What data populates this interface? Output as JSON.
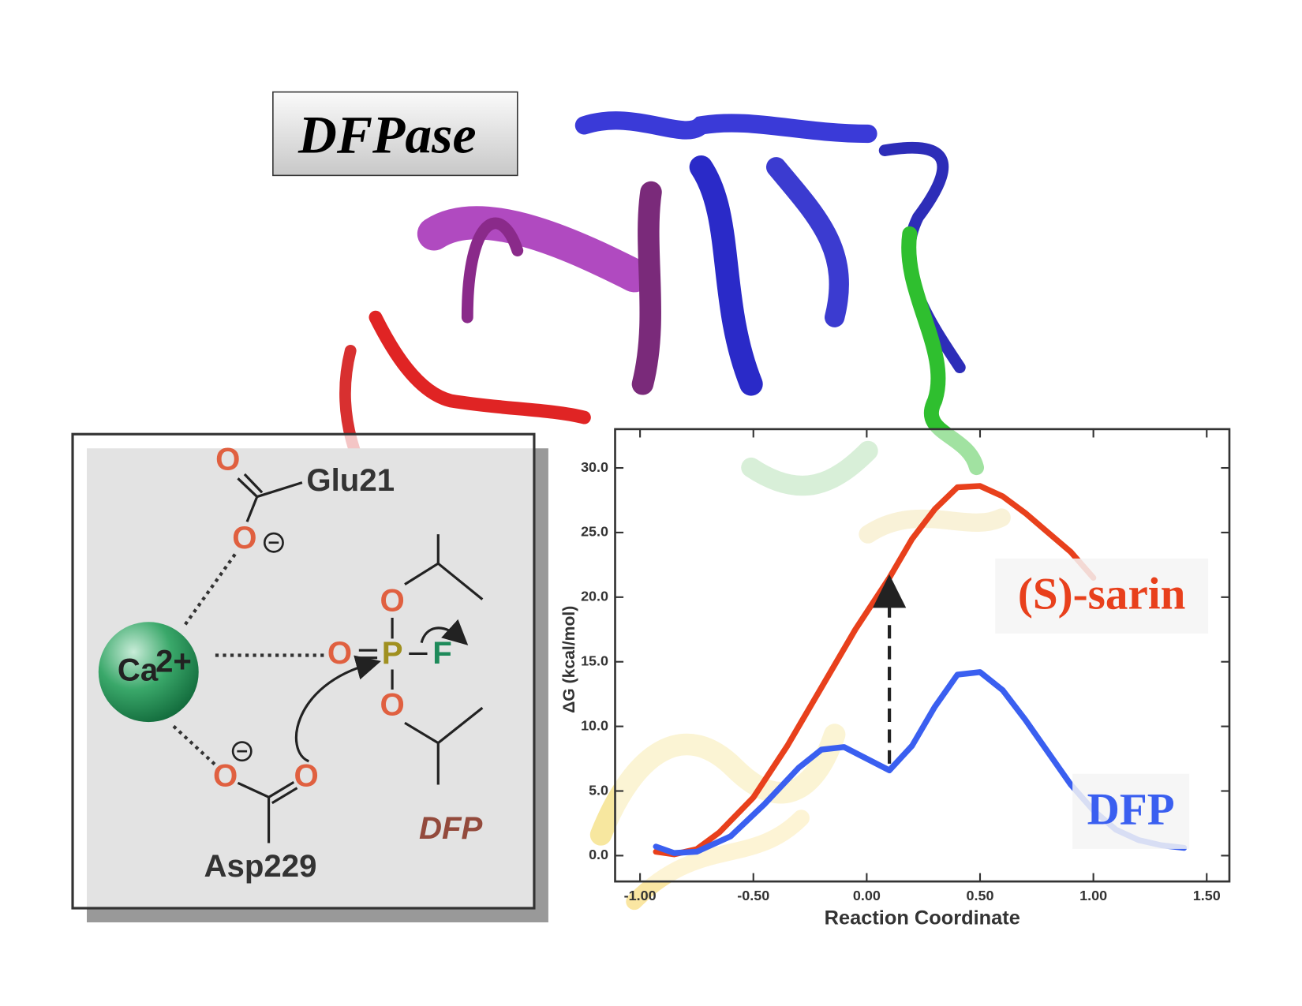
{
  "diagram": {
    "label_box": "DFPase",
    "glu": "Glu21",
    "asp": "Asp229",
    "metal": "Ca",
    "metal_charge": "2+",
    "oxygen": "O",
    "phosphorus": "P",
    "fluorine": "F",
    "substrate": "DFP"
  },
  "chart_data": {
    "type": "line",
    "xlabel": "Reaction Coordinate",
    "ylabel": "ΔG (kcal/mol)",
    "xlim": [
      -1.11,
      1.6
    ],
    "ylim": [
      -2,
      33
    ],
    "xticks": [
      {
        "value": -1,
        "label": "-1.00"
      },
      {
        "value": -0.5,
        "label": "-0.50"
      },
      {
        "value": 0,
        "label": "0.00"
      },
      {
        "value": 0.5,
        "label": "0.50"
      },
      {
        "value": 1,
        "label": "1.00"
      },
      {
        "value": 1.5,
        "label": "1.50"
      }
    ],
    "yticks": [
      {
        "value": 0,
        "label": "0.0"
      },
      {
        "value": 5,
        "label": "5.0"
      },
      {
        "value": 10,
        "label": "10.0"
      },
      {
        "value": 15,
        "label": "15.0"
      },
      {
        "value": 20,
        "label": "20.0"
      },
      {
        "value": 25,
        "label": "25.0"
      },
      {
        "value": 30,
        "label": "30.0"
      }
    ],
    "series": [
      {
        "name": "(S)-sarin",
        "color": "#e8401c",
        "x": [
          -0.93,
          -0.85,
          -0.75,
          -0.65,
          -0.5,
          -0.35,
          -0.2,
          -0.05,
          0.1,
          0.2,
          0.3,
          0.4,
          0.5,
          0.6,
          0.7,
          0.8,
          0.9,
          1.0
        ],
        "values": [
          0.3,
          0.1,
          0.5,
          1.8,
          4.5,
          8.5,
          13,
          17.5,
          21.5,
          24.5,
          26.8,
          28.5,
          28.6,
          27.8,
          26.5,
          25,
          23.5,
          21.5
        ]
      },
      {
        "name": "DFP",
        "color": "#3a5ff0",
        "x": [
          -0.93,
          -0.85,
          -0.75,
          -0.6,
          -0.45,
          -0.3,
          -0.2,
          -0.1,
          0,
          0.1,
          0.2,
          0.3,
          0.4,
          0.5,
          0.6,
          0.7,
          0.8,
          0.9,
          1.0,
          1.1,
          1.2,
          1.3,
          1.4
        ],
        "values": [
          0.7,
          0.2,
          0.3,
          1.5,
          4,
          6.8,
          8.2,
          8.4,
          7.5,
          6.6,
          8.5,
          11.5,
          14,
          14.2,
          12.8,
          10.5,
          8,
          5.5,
          3.5,
          2,
          1.2,
          0.8,
          0.6
        ]
      }
    ]
  }
}
